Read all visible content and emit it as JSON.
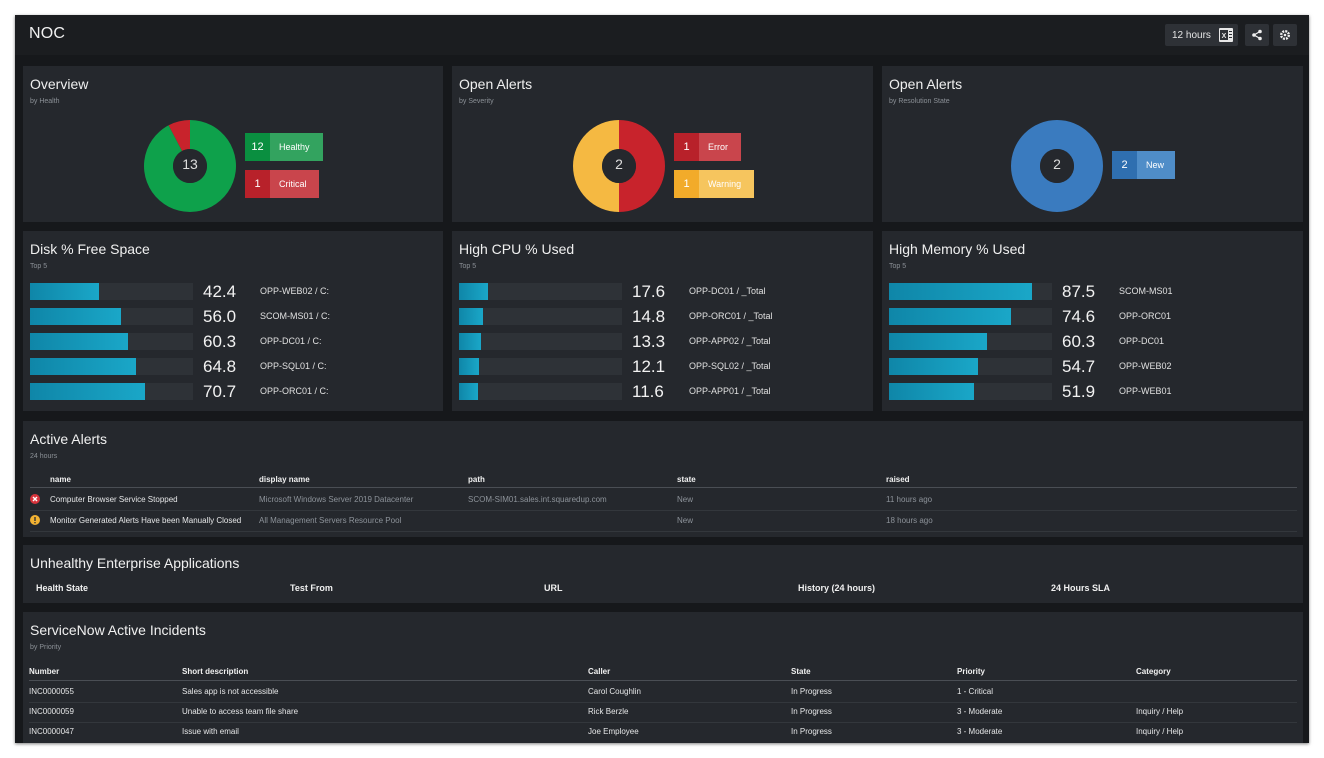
{
  "header": {
    "title": "NOC",
    "time_range": "12 hours"
  },
  "colors": {
    "healthy": "#0ea14b",
    "critical": "#c8232c",
    "warning": "#f5b942",
    "new": "#3a7bbf",
    "bar": "#16a0c2"
  },
  "overview": {
    "title": "Overview",
    "subtitle": "by Health",
    "total": "13",
    "legend": [
      {
        "count": "12",
        "label": "Healthy"
      },
      {
        "count": "1",
        "label": "Critical"
      }
    ],
    "donut": [
      {
        "value": 12,
        "color": "#0ea14b"
      },
      {
        "value": 1,
        "color": "#c8232c"
      }
    ]
  },
  "alerts_severity": {
    "title": "Open Alerts",
    "subtitle": "by Severity",
    "total": "2",
    "legend": [
      {
        "count": "1",
        "label": "Error"
      },
      {
        "count": "1",
        "label": "Warning"
      }
    ],
    "donut": [
      {
        "value": 1,
        "color": "#c8232c"
      },
      {
        "value": 1,
        "color": "#f5b942"
      }
    ]
  },
  "alerts_resolution": {
    "title": "Open Alerts",
    "subtitle": "by Resolution State",
    "total": "2",
    "legend": [
      {
        "count": "2",
        "label": "New"
      }
    ],
    "donut": [
      {
        "value": 2,
        "color": "#3a7bbf"
      }
    ]
  },
  "disk": {
    "title": "Disk % Free Space",
    "subtitle": "Top 5",
    "rows": [
      {
        "value": 42.4,
        "display": "42.4",
        "name": "OPP-WEB02 / C:"
      },
      {
        "value": 56.0,
        "display": "56.0",
        "name": "SCOM-MS01 / C:"
      },
      {
        "value": 60.3,
        "display": "60.3",
        "name": "OPP-DC01 / C:"
      },
      {
        "value": 64.8,
        "display": "64.8",
        "name": "OPP-SQL01 / C:"
      },
      {
        "value": 70.7,
        "display": "70.7",
        "name": "OPP-ORC01 / C:"
      }
    ]
  },
  "cpu": {
    "title": "High CPU % Used",
    "subtitle": "Top 5",
    "rows": [
      {
        "value": 17.6,
        "display": "17.6",
        "name": "OPP-DC01 / _Total"
      },
      {
        "value": 14.8,
        "display": "14.8",
        "name": "OPP-ORC01 / _Total"
      },
      {
        "value": 13.3,
        "display": "13.3",
        "name": "OPP-APP02 / _Total"
      },
      {
        "value": 12.1,
        "display": "12.1",
        "name": "OPP-SQL02 / _Total"
      },
      {
        "value": 11.6,
        "display": "11.6",
        "name": "OPP-APP01 / _Total"
      }
    ]
  },
  "memory": {
    "title": "High Memory % Used",
    "subtitle": "Top 5",
    "rows": [
      {
        "value": 87.5,
        "display": "87.5",
        "name": "SCOM-MS01"
      },
      {
        "value": 74.6,
        "display": "74.6",
        "name": "OPP-ORC01"
      },
      {
        "value": 60.3,
        "display": "60.3",
        "name": "OPP-DC01"
      },
      {
        "value": 54.7,
        "display": "54.7",
        "name": "OPP-WEB02"
      },
      {
        "value": 51.9,
        "display": "51.9",
        "name": "OPP-WEB01"
      }
    ]
  },
  "active_alerts": {
    "title": "Active Alerts",
    "subtitle": "24 hours",
    "columns": [
      "name",
      "display name",
      "path",
      "state",
      "raised"
    ],
    "rows": [
      {
        "icon": "error-icon",
        "name": "Computer Browser Service Stopped",
        "display_name": "Microsoft Windows Server 2019 Datacenter",
        "path": "SCOM-SIM01.sales.int.squaredup.com",
        "state": "New",
        "raised": "11 hours ago"
      },
      {
        "icon": "warning-icon",
        "name": "Monitor Generated Alerts Have been Manually Closed",
        "display_name": "All Management Servers Resource Pool",
        "path": "",
        "state": "New",
        "raised": "18 hours ago"
      }
    ]
  },
  "enterprise_apps": {
    "title": "Unhealthy Enterprise Applications",
    "columns": [
      "Health State",
      "Test From",
      "URL",
      "History (24 hours)",
      "24 Hours SLA"
    ]
  },
  "incidents": {
    "title": "ServiceNow Active Incidents",
    "subtitle": "by Priority",
    "columns": [
      "Number",
      "Short description",
      "Caller",
      "State",
      "Priority",
      "Category"
    ],
    "rows": [
      {
        "number": "INC0000055",
        "desc": "Sales app is not accessible",
        "caller": "Carol Coughlin",
        "state": "In Progress",
        "priority": "1 - Critical",
        "category": ""
      },
      {
        "number": "INC0000059",
        "desc": "Unable to access team file share",
        "caller": "Rick Berzle",
        "state": "In Progress",
        "priority": "3 - Moderate",
        "category": "Inquiry / Help"
      },
      {
        "number": "INC0000047",
        "desc": "Issue with email",
        "caller": "Joe Employee",
        "state": "In Progress",
        "priority": "3 - Moderate",
        "category": "Inquiry / Help"
      }
    ]
  }
}
